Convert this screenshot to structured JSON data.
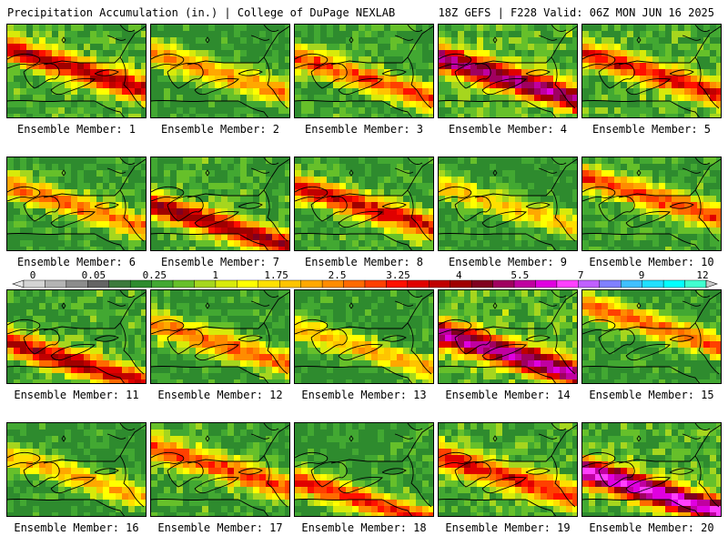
{
  "header": {
    "title_left": "Precipitation Accumulation (in.) | College of DuPage NEXLAB",
    "title_right": "18Z GEFS | F228 Valid: 06Z MON JUN 16 2025"
  },
  "caption_prefix": "Ensemble Member: ",
  "members": [
    {
      "label": "Ensemble Member: 1",
      "wetness": 0.7,
      "peak": 3.6,
      "band": 0.45
    },
    {
      "label": "Ensemble Member: 2",
      "wetness": 0.45,
      "peak": 2.2,
      "band": 0.5
    },
    {
      "label": "Ensemble Member: 3",
      "wetness": 0.6,
      "peak": 2.6,
      "band": 0.55
    },
    {
      "label": "Ensemble Member: 4",
      "wetness": 0.85,
      "peak": 4.8,
      "band": 0.55
    },
    {
      "label": "Ensemble Member: 5",
      "wetness": 0.75,
      "peak": 3.0,
      "band": 0.5
    },
    {
      "label": "Ensemble Member: 6",
      "wetness": 0.5,
      "peak": 2.4,
      "band": 0.5
    },
    {
      "label": "Ensemble Member: 7",
      "wetness": 0.65,
      "peak": 3.8,
      "band": 0.7
    },
    {
      "label": "Ensemble Member: 8",
      "wetness": 0.6,
      "peak": 3.2,
      "band": 0.5
    },
    {
      "label": "Ensemble Member: 9",
      "wetness": 0.4,
      "peak": 1.8,
      "band": 0.5
    },
    {
      "label": "Ensemble Member: 10",
      "wetness": 0.55,
      "peak": 2.8,
      "band": 0.4
    },
    {
      "label": "Ensemble Member: 11",
      "wetness": 0.65,
      "peak": 3.5,
      "band": 0.75
    },
    {
      "label": "Ensemble Member: 12",
      "wetness": 0.45,
      "peak": 2.6,
      "band": 0.55
    },
    {
      "label": "Ensemble Member: 13",
      "wetness": 0.4,
      "peak": 2.0,
      "band": 0.6
    },
    {
      "label": "Ensemble Member: 14",
      "wetness": 0.85,
      "peak": 5.2,
      "band": 0.65
    },
    {
      "label": "Ensemble Member: 15",
      "wetness": 0.5,
      "peak": 2.6,
      "band": 0.35
    },
    {
      "label": "Ensemble Member: 16",
      "wetness": 0.4,
      "peak": 1.9,
      "band": 0.55
    },
    {
      "label": "Ensemble Member: 17",
      "wetness": 0.6,
      "peak": 2.8,
      "band": 0.45
    },
    {
      "label": "Ensemble Member: 18",
      "wetness": 0.5,
      "peak": 3.0,
      "band": 0.8
    },
    {
      "label": "Ensemble Member: 19",
      "wetness": 0.7,
      "peak": 3.0,
      "band": 0.55
    },
    {
      "label": "Ensemble Member: 20",
      "wetness": 0.8,
      "peak": 6.0,
      "band": 0.7
    }
  ],
  "colorbar": {
    "unit": "in.",
    "tick_labels": [
      "0",
      "0.05",
      "0.25",
      "1",
      "1.75",
      "2.5",
      "3.25",
      "4",
      "5.5",
      "7",
      "9",
      "12"
    ],
    "bin_edges": [
      0,
      0.01,
      0.05,
      0.1,
      0.15,
      0.25,
      0.5,
      0.75,
      1,
      1.25,
      1.5,
      1.75,
      2,
      2.25,
      2.5,
      2.75,
      3,
      3.25,
      3.5,
      3.75,
      4,
      4.5,
      5,
      5.5,
      6,
      6.5,
      7,
      7.5,
      8,
      9,
      10,
      11,
      12
    ],
    "colors": [
      "#d4d4d4",
      "#b4b4b4",
      "#8c8c8c",
      "#646464",
      "#3c7a3c",
      "#2e8b2e",
      "#42a832",
      "#66c02a",
      "#a6d61e",
      "#d8ea0a",
      "#ffff00",
      "#ffe000",
      "#ffc400",
      "#ffa800",
      "#ff8c00",
      "#ff6a00",
      "#ff4000",
      "#ff1000",
      "#e00000",
      "#c00000",
      "#a00000",
      "#800020",
      "#a00060",
      "#c000a0",
      "#e000e0",
      "#ff40ff",
      "#c060ff",
      "#8080ff",
      "#40c0ff",
      "#20e0ff",
      "#00ffff",
      "#40ffd0"
    ]
  }
}
